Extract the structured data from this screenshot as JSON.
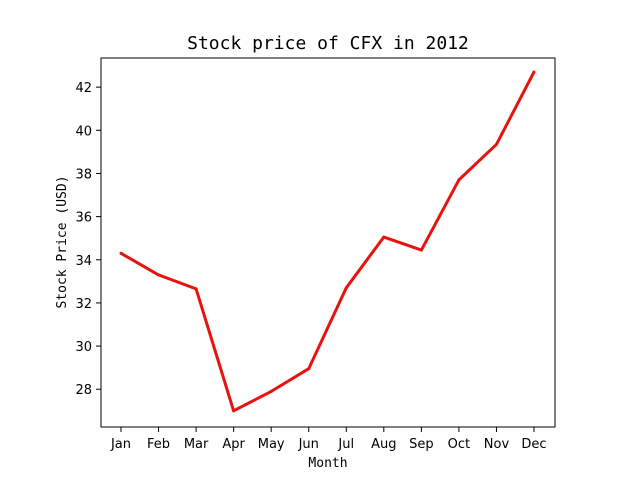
{
  "chart_data": {
    "type": "line",
    "title": "Stock price of CFX in 2012",
    "xlabel": "Month",
    "ylabel": "Stock Price (USD)",
    "categories": [
      "Jan",
      "Feb",
      "Mar",
      "Apr",
      "May",
      "Jun",
      "Jul",
      "Aug",
      "Sep",
      "Oct",
      "Nov",
      "Dec"
    ],
    "values": [
      34.3,
      33.3,
      32.65,
      27.0,
      27.9,
      28.95,
      32.7,
      35.05,
      34.45,
      37.7,
      39.35,
      42.7
    ],
    "ylim": [
      26.25,
      43.35
    ],
    "yticks": [
      28,
      30,
      32,
      34,
      36,
      38,
      40,
      42
    ],
    "grid": false,
    "line_color": "#e8130f"
  }
}
